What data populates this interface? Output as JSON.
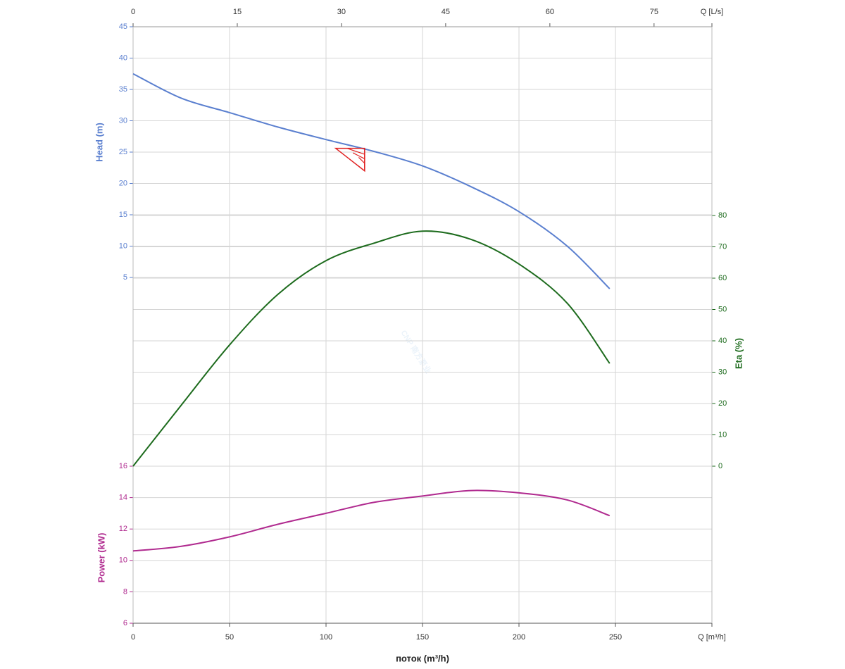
{
  "chart_data": {
    "type": "line",
    "xlabel": "поток (m³/h)",
    "ylabel": "Head (m)",
    "y2label": "Eta (%)",
    "y3label": "Power (kW)",
    "watermark": "CNP 南方泵业",
    "x": [
      0,
      25,
      50,
      75,
      100,
      125,
      150,
      175,
      200,
      225,
      247
    ],
    "xlim": [
      0,
      300
    ],
    "xticks": [
      0,
      50,
      100,
      150,
      200,
      250,
      {
        "value": 300,
        "label": "Q [m³/h]"
      }
    ],
    "x2lim": [
      0,
      83.33
    ],
    "x2ticks": [
      0,
      15,
      30,
      45,
      60,
      75,
      {
        "value": 83.33,
        "label": "Q [L/s]"
      }
    ],
    "ylim": [
      0,
      45
    ],
    "yticks": [
      5,
      10,
      15,
      20,
      25,
      30,
      35,
      40,
      45
    ],
    "y2lim": [
      0,
      80
    ],
    "y2ticks": [
      0,
      10,
      20,
      30,
      40,
      50,
      60,
      70,
      80
    ],
    "y3lim": [
      6,
      16
    ],
    "y3ticks": [
      6,
      8,
      10,
      12,
      14,
      16
    ],
    "grid": true,
    "series": [
      {
        "name": "Head",
        "color": "#5a7fcf",
        "axis": "y",
        "values": [
          37.5,
          33.6,
          31.3,
          29.0,
          27.0,
          25.1,
          22.8,
          19.5,
          15.5,
          10.0,
          3.2
        ]
      },
      {
        "name": "Eta",
        "color": "#1d6b1d",
        "axis": "y2",
        "values": [
          0,
          19.5,
          38.7,
          54.8,
          65.6,
          71.2,
          75.0,
          72.4,
          64.5,
          52.0,
          32.8
        ]
      },
      {
        "name": "Power",
        "color": "#b02a8f",
        "axis": "y3",
        "values": [
          10.6,
          10.9,
          11.5,
          12.3,
          13.0,
          13.7,
          14.1,
          14.45,
          14.3,
          13.85,
          12.85
        ]
      }
    ],
    "duty_point": {
      "x": 120,
      "y": 25.6,
      "color": "#e02020"
    }
  }
}
